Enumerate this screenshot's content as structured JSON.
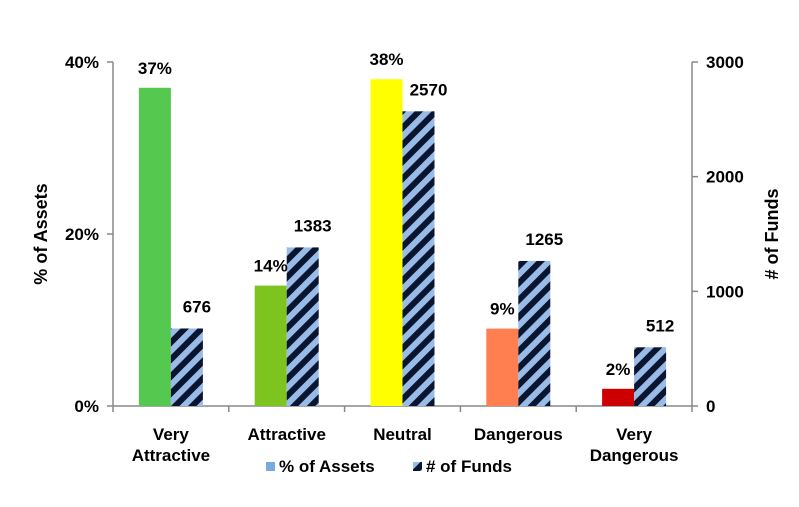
{
  "chart_data": {
    "type": "bar",
    "categories": [
      [
        "Very",
        "Attractive"
      ],
      [
        "Attractive"
      ],
      [
        "Neutral"
      ],
      [
        "Dangerous"
      ],
      [
        "Very",
        "Dangerous"
      ]
    ],
    "series": [
      {
        "name": "% of Assets",
        "axis": "left",
        "values": [
          37,
          14,
          38,
          9,
          2
        ],
        "labels": [
          "37%",
          "14%",
          "38%",
          "9%",
          "2%"
        ],
        "colors": [
          "#55c84f",
          "#7ec41f",
          "#ffff00",
          "#ff7f50",
          "#cc0000"
        ],
        "legend_color": "#7aaadd"
      },
      {
        "name": "# of Funds",
        "axis": "right",
        "values": [
          676,
          1383,
          2570,
          1265,
          512
        ],
        "labels": [
          "676",
          "1383",
          "2570",
          "1265",
          "512"
        ],
        "fill_pattern": "diagonal-stripes",
        "stripe_colors": [
          "#99bbe8",
          "#0a1530"
        ]
      }
    ],
    "ylabel_left": "% of Assets",
    "ylabel_right": "# of Funds",
    "ylim_left": [
      0,
      40
    ],
    "ylim_right": [
      0,
      3000
    ],
    "yticks_left": [
      "0%",
      "20%",
      "40%"
    ],
    "yticks_right": [
      "0",
      "1000",
      "2000",
      "3000"
    ],
    "grid": false,
    "legend_position": "bottom"
  }
}
